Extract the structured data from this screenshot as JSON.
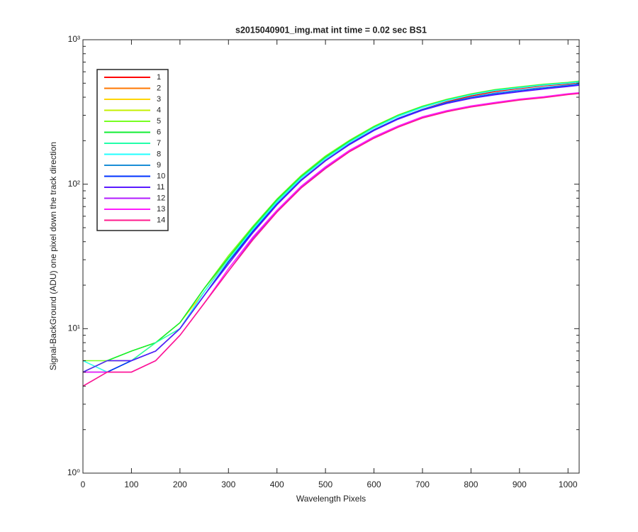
{
  "chart_data": {
    "type": "line",
    "title": "s2015040901_img.mat int time = 0.02 sec   BS1",
    "xlabel": "Wavelength Pixels",
    "ylabel": "Signal-BackGround (ADU) one pixel down the track direction",
    "yscale": "log",
    "xlim": [
      0,
      1023
    ],
    "ylim": [
      1,
      1000
    ],
    "xticks": [
      0,
      100,
      200,
      300,
      400,
      500,
      600,
      700,
      800,
      900,
      1000
    ],
    "yticks": [
      {
        "value": 1,
        "label": "10⁰"
      },
      {
        "value": 10,
        "label": "10¹"
      },
      {
        "value": 100,
        "label": "10²"
      },
      {
        "value": 1000,
        "label": "10³"
      }
    ],
    "grid": false,
    "legend": "upper left",
    "x": [
      0,
      50,
      100,
      150,
      200,
      250,
      300,
      350,
      400,
      450,
      500,
      550,
      600,
      650,
      700,
      750,
      800,
      850,
      900,
      950,
      1000,
      1023
    ],
    "series": [
      {
        "name": "1",
        "color": "#ff0000",
        "values": [
          5,
          6,
          6,
          7,
          10,
          17,
          29,
          46,
          72,
          106,
          145,
          190,
          238,
          285,
          330,
          372,
          408,
          438,
          460,
          480,
          495,
          505
        ]
      },
      {
        "name": "2",
        "color": "#ff7700",
        "values": [
          5,
          5,
          6,
          7,
          10,
          18,
          30,
          48,
          75,
          110,
          150,
          195,
          245,
          295,
          340,
          380,
          415,
          445,
          465,
          485,
          500,
          510
        ]
      },
      {
        "name": "3",
        "color": "#ffd500",
        "values": [
          6,
          5,
          6,
          8,
          11,
          18,
          31,
          49,
          76,
          111,
          152,
          197,
          247,
          297,
          342,
          382,
          417,
          447,
          467,
          487,
          502,
          512
        ]
      },
      {
        "name": "4",
        "color": "#c4f000",
        "values": [
          5,
          6,
          7,
          8,
          11,
          19,
          32,
          50,
          78,
          114,
          155,
          200,
          250,
          300,
          345,
          385,
          420,
          450,
          470,
          490,
          505,
          515
        ]
      },
      {
        "name": "5",
        "color": "#77ff22",
        "values": [
          6,
          6,
          7,
          8,
          11,
          19,
          32,
          51,
          79,
          115,
          157,
          202,
          252,
          302,
          347,
          387,
          422,
          452,
          472,
          492,
          507,
          517
        ]
      },
      {
        "name": "6",
        "color": "#11ee33",
        "values": [
          5,
          6,
          7,
          8,
          11,
          19,
          31,
          50,
          78,
          113,
          154,
          199,
          249,
          299,
          344,
          384,
          419,
          449,
          469,
          489,
          504,
          514
        ]
      },
      {
        "name": "7",
        "color": "#22ffaa",
        "values": [
          5,
          6,
          6,
          8,
          10,
          18,
          30,
          49,
          76,
          111,
          151,
          196,
          246,
          296,
          341,
          381,
          416,
          446,
          466,
          486,
          501,
          511
        ]
      },
      {
        "name": "8",
        "color": "#22ffff",
        "values": [
          6,
          5,
          6,
          7,
          10,
          18,
          30,
          48,
          75,
          110,
          150,
          195,
          245,
          295,
          340,
          380,
          415,
          445,
          465,
          485,
          500,
          510
        ]
      },
      {
        "name": "9",
        "color": "#1a8ed6",
        "values": [
          5,
          5,
          6,
          7,
          10,
          17,
          29,
          47,
          73,
          107,
          146,
          190,
          238,
          286,
          330,
          368,
          400,
          428,
          448,
          468,
          485,
          495
        ]
      },
      {
        "name": "10",
        "color": "#0033ff",
        "values": [
          5,
          5,
          6,
          7,
          10,
          17,
          29,
          47,
          73,
          107,
          146,
          190,
          238,
          285,
          328,
          365,
          395,
          420,
          440,
          460,
          478,
          488
        ]
      },
      {
        "name": "11",
        "color": "#5a1aff",
        "values": [
          5,
          6,
          6,
          7,
          10,
          17,
          28,
          46,
          72,
          106,
          145,
          188,
          235,
          282,
          325,
          362,
          392,
          416,
          436,
          456,
          474,
          484
        ]
      },
      {
        "name": "12",
        "color": "#b21aff",
        "values": [
          4,
          5,
          5,
          6,
          9,
          15,
          25,
          42,
          65,
          95,
          130,
          170,
          210,
          250,
          290,
          320,
          345,
          365,
          385,
          400,
          420,
          428
        ]
      },
      {
        "name": "13",
        "color": "#ff1aff",
        "values": [
          5,
          5,
          5,
          6,
          9,
          15,
          26,
          43,
          66,
          97,
          132,
          172,
          213,
          253,
          293,
          323,
          348,
          368,
          388,
          403,
          423,
          430
        ]
      },
      {
        "name": "14",
        "color": "#ff1a8c",
        "values": [
          4,
          5,
          5,
          6,
          9,
          15,
          25,
          41,
          64,
          94,
          128,
          168,
          208,
          248,
          287,
          317,
          342,
          362,
          382,
          397,
          417,
          424
        ]
      }
    ]
  }
}
